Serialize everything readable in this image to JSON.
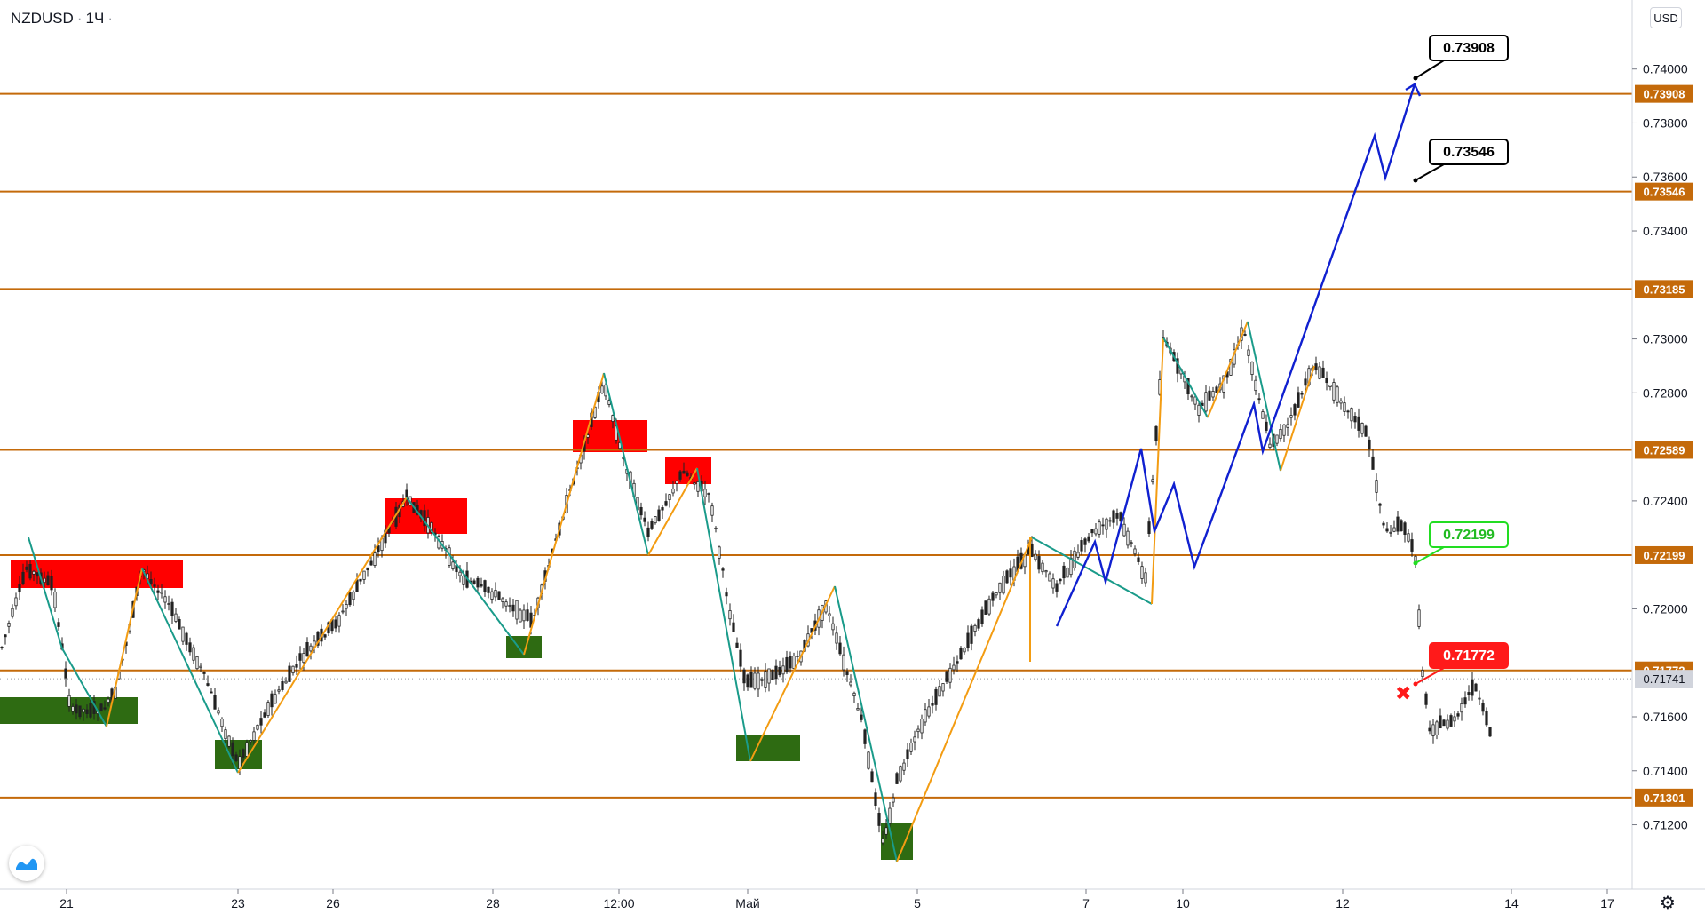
{
  "header": {
    "symbol": "NZDUSD",
    "interval": "1Ч"
  },
  "currency_button": "USD",
  "icons": {
    "settings": "gear-icon",
    "logo": "tradingview-logo-icon"
  },
  "colors": {
    "level_line": "#c46a0a",
    "bull_candle_zone": "#2e6b12",
    "bear_candle_zone": "#ff0000",
    "zigzag_up": "#f39c12",
    "zigzag_down": "#1a9b8a",
    "projection": "#1020d0",
    "candle": "#222222",
    "target_label_bg": "#ffffff",
    "support_label": "#ff1a1a",
    "resist_label": "#22dd22"
  },
  "chart_data": {
    "type": "candlestick",
    "symbol": "NZDUSD",
    "timeframe": "1Ч",
    "ylim": [
      0.7108,
      0.7418
    ],
    "y_ticks": [
      "0.74000",
      "0.73800",
      "0.73600",
      "0.73400",
      "0.73000",
      "0.72800",
      "0.72400",
      "0.72000",
      "0.71600",
      "0.71400",
      "0.71200"
    ],
    "x_ticks": [
      "21",
      "23",
      "26",
      "28",
      "12:00",
      "Май",
      "5",
      "7",
      "10",
      "12",
      "14",
      "17"
    ],
    "current_price": "0.71741",
    "levels": [
      {
        "value": 0.73908,
        "label": "0.73908"
      },
      {
        "value": 0.73546,
        "label": "0.73546"
      },
      {
        "value": 0.73185,
        "label": "0.73185"
      },
      {
        "value": 0.72589,
        "label": "0.72589"
      },
      {
        "value": 0.72199,
        "label": "0.72199"
      },
      {
        "value": 0.71772,
        "label": "0.71772"
      },
      {
        "value": 0.71301,
        "label": "0.71301"
      }
    ],
    "callouts": [
      {
        "text": "0.73908",
        "style": "target"
      },
      {
        "text": "0.73546",
        "style": "target"
      },
      {
        "text": "0.72199",
        "style": "green"
      },
      {
        "text": "0.71772",
        "style": "red"
      }
    ]
  }
}
